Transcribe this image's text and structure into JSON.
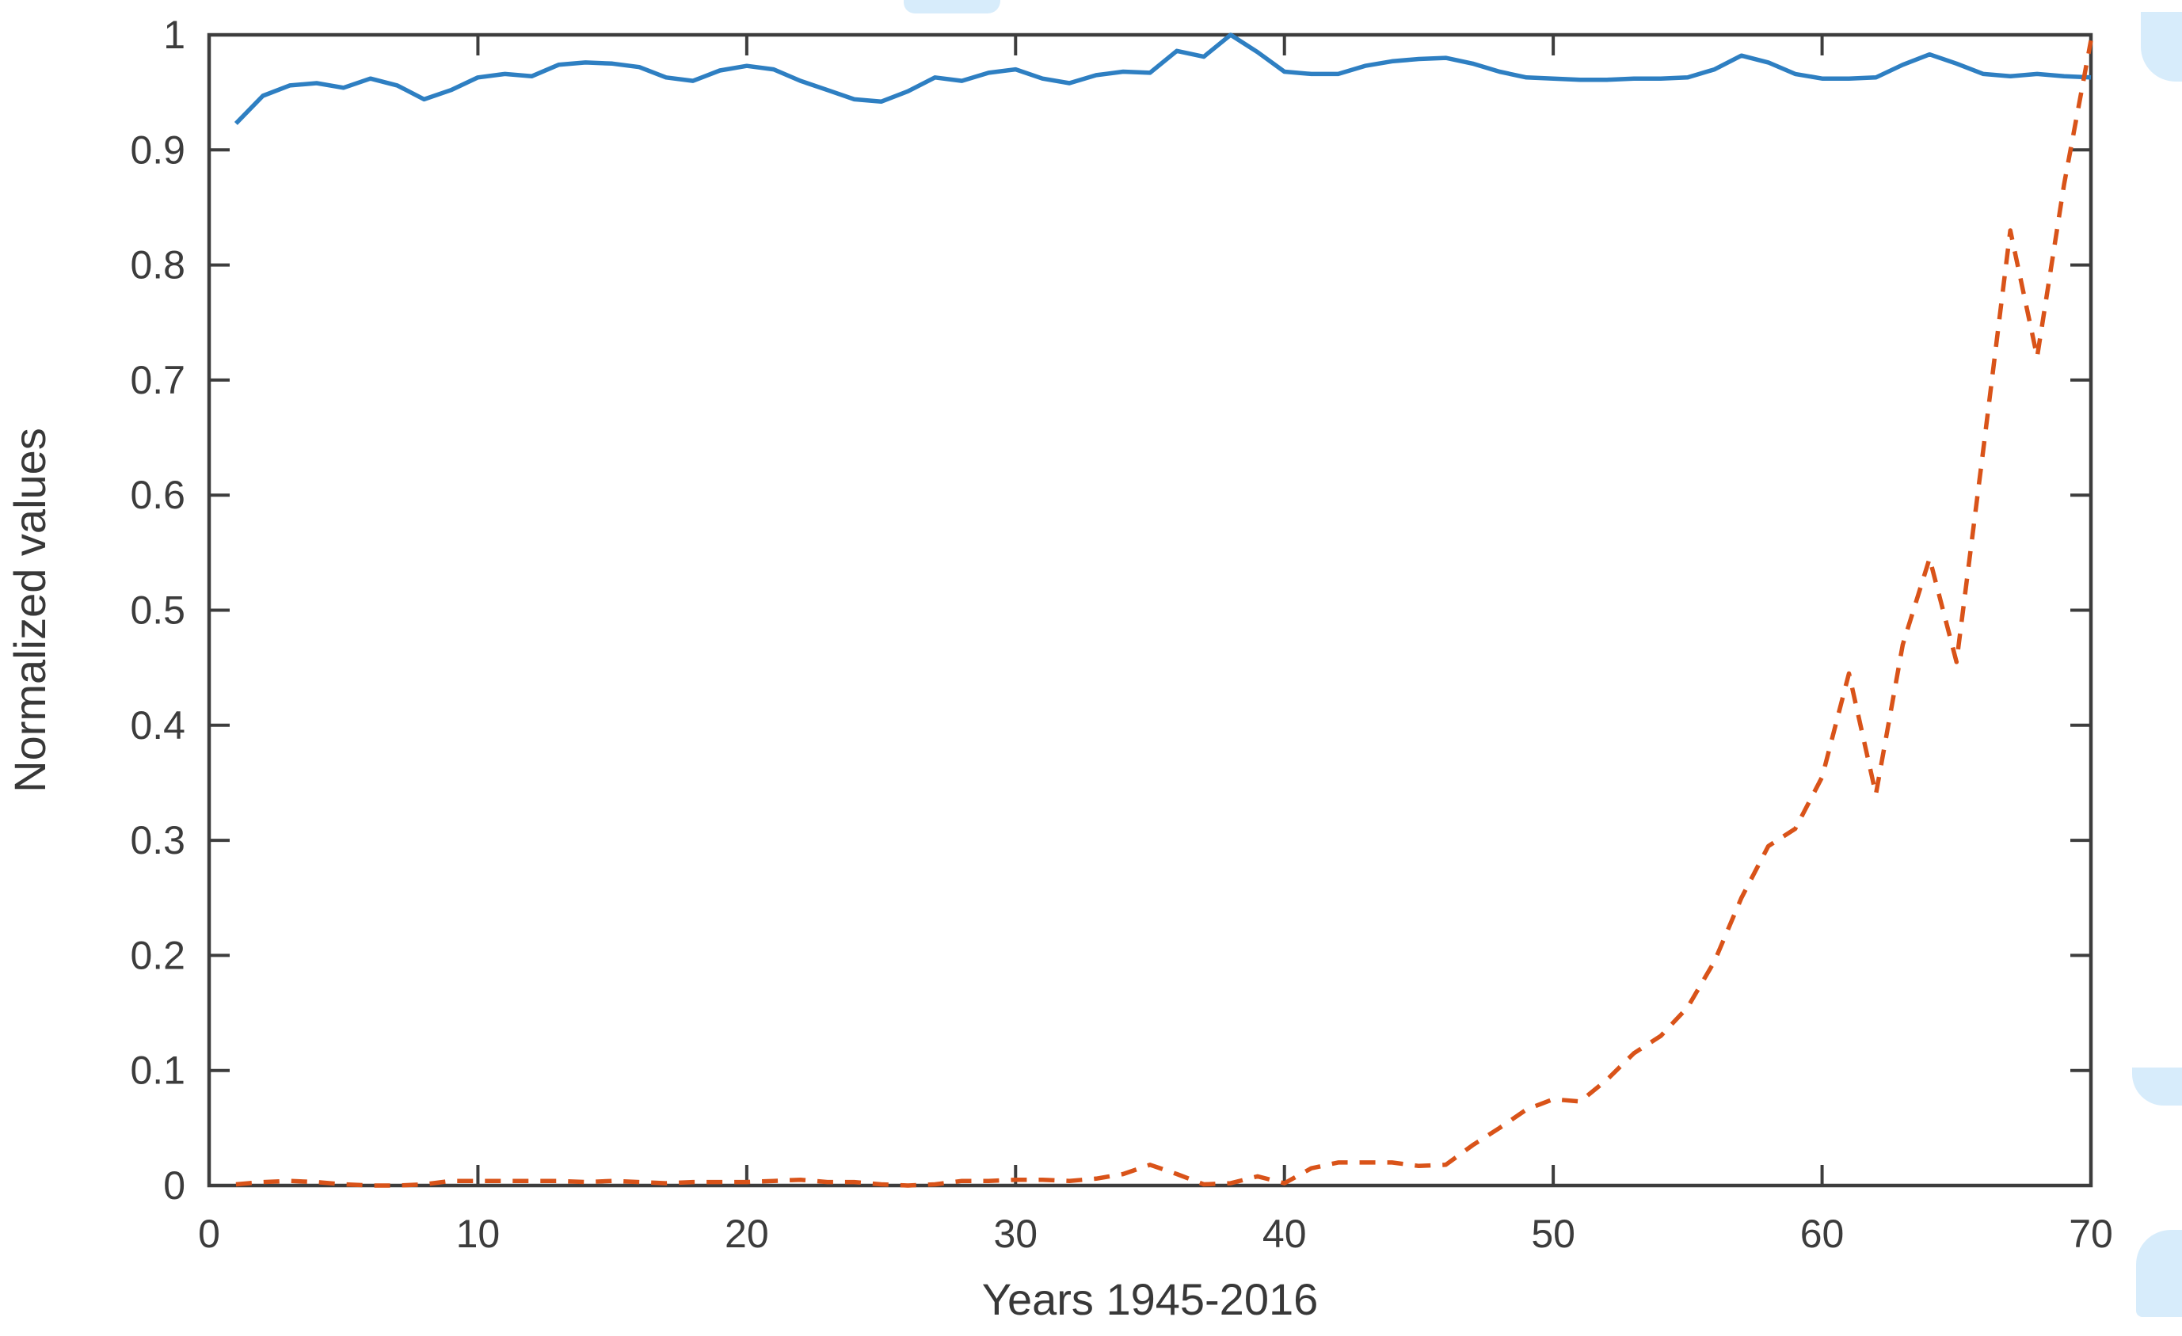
{
  "figure": {
    "background": "#ffffff",
    "axis_color": "#3d3d3d",
    "tick_label_color": "#3c3c3c",
    "label_color": "#383838",
    "watermark_color": "#d7ecfb",
    "ylabel": "Normalized values",
    "xlabel": "Years 1945-2016"
  },
  "chart_data": {
    "type": "line",
    "title": "",
    "xlabel": "Years 1945-2016",
    "ylabel": "Normalized values",
    "xlim": [
      0,
      70
    ],
    "ylim": [
      0,
      1
    ],
    "x_tick_labels": [
      "0",
      "10",
      "20",
      "30",
      "40",
      "50",
      "60",
      "70"
    ],
    "y_tick_labels": [
      "0",
      "0.1",
      "0.2",
      "0.3",
      "0.4",
      "0.5",
      "0.6",
      "0.7",
      "0.8",
      "0.9",
      "1"
    ],
    "grid": false,
    "legend": "none",
    "box": true,
    "x": [
      1,
      2,
      3,
      4,
      5,
      6,
      7,
      8,
      9,
      10,
      11,
      12,
      13,
      14,
      15,
      16,
      17,
      18,
      19,
      20,
      21,
      22,
      23,
      24,
      25,
      26,
      27,
      28,
      29,
      30,
      31,
      32,
      33,
      34,
      35,
      36,
      37,
      38,
      39,
      40,
      41,
      42,
      43,
      44,
      45,
      46,
      47,
      48,
      49,
      50,
      51,
      52,
      53,
      54,
      55,
      56,
      57,
      58,
      59,
      60,
      61,
      62,
      63,
      64,
      65,
      66,
      67,
      68,
      69,
      70
    ],
    "series": [
      {
        "name": "solid blue series",
        "color": "#2e7fc2",
        "line_style": "solid",
        "values": [
          0.923,
          0.947,
          0.956,
          0.958,
          0.954,
          0.962,
          0.956,
          0.944,
          0.952,
          0.963,
          0.966,
          0.964,
          0.974,
          0.976,
          0.975,
          0.972,
          0.963,
          0.96,
          0.969,
          0.973,
          0.97,
          0.96,
          0.952,
          0.944,
          0.942,
          0.951,
          0.963,
          0.96,
          0.967,
          0.97,
          0.962,
          0.958,
          0.965,
          0.968,
          0.967,
          0.986,
          0.981,
          1.0,
          0.985,
          0.968,
          0.966,
          0.966,
          0.973,
          0.977,
          0.979,
          0.98,
          0.975,
          0.968,
          0.963,
          0.962,
          0.961,
          0.961,
          0.962,
          0.962,
          0.963,
          0.97,
          0.982,
          0.976,
          0.966,
          0.962,
          0.962,
          0.963,
          0.974,
          0.983,
          0.975,
          0.966,
          0.964,
          0.966,
          0.964,
          0.963
        ]
      },
      {
        "name": "dashed red series",
        "color": "#d95319",
        "line_style": "dashed",
        "values": [
          0.001,
          0.003,
          0.004,
          0.003,
          0.001,
          0.0,
          0.0,
          0.001,
          0.004,
          0.004,
          0.004,
          0.004,
          0.004,
          0.003,
          0.004,
          0.003,
          0.002,
          0.003,
          0.003,
          0.003,
          0.004,
          0.005,
          0.003,
          0.003,
          0.001,
          0.0,
          0.001,
          0.004,
          0.004,
          0.005,
          0.005,
          0.004,
          0.006,
          0.01,
          0.018,
          0.01,
          0.001,
          0.002,
          0.008,
          0.002,
          0.015,
          0.02,
          0.02,
          0.02,
          0.017,
          0.018,
          0.035,
          0.05,
          0.066,
          0.075,
          0.073,
          0.092,
          0.115,
          0.13,
          0.155,
          0.195,
          0.25,
          0.295,
          0.31,
          0.355,
          0.445,
          0.34,
          0.47,
          0.545,
          0.455,
          0.64,
          0.83,
          0.72,
          0.87,
          0.995
        ]
      }
    ]
  }
}
